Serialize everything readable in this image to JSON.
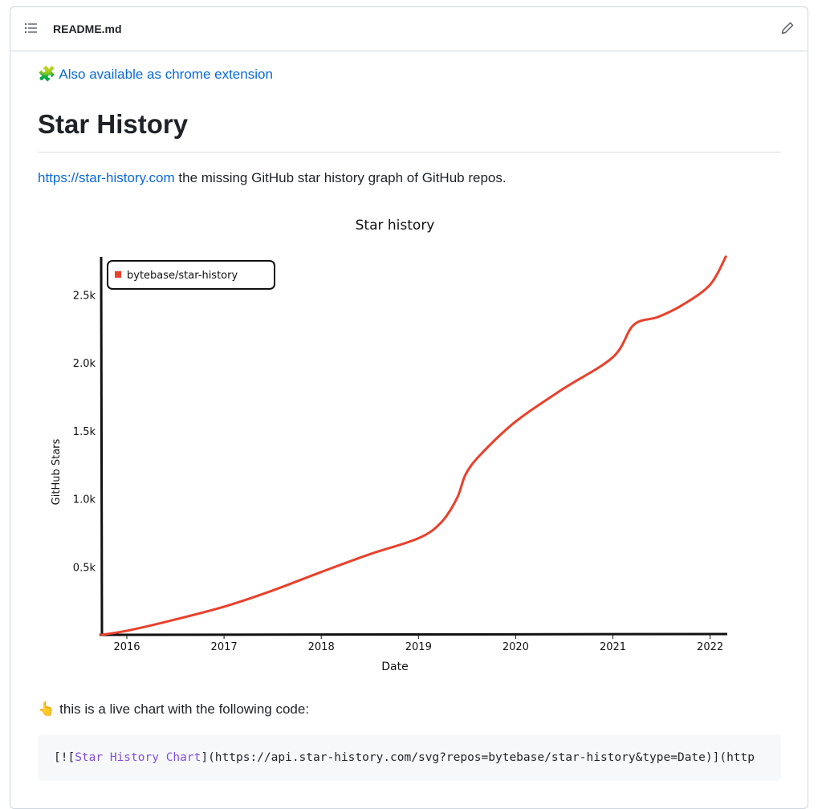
{
  "file_header": {
    "filename": "README.md",
    "toc_icon": "list-unordered-icon",
    "edit_icon": "pencil-icon"
  },
  "readme": {
    "extension_link": {
      "emoji": "🧩",
      "label": "Also available as chrome extension"
    },
    "title": "Star History",
    "description": {
      "link": "https://star-history.com",
      "text": " the missing GitHub star history graph of GitHub repos."
    },
    "live_note": {
      "emoji": "👆",
      "text": "this is a live chart with the following code:"
    },
    "code": {
      "open": "[![",
      "alt": "Star History Chart",
      "rest": "](https://api.star-history.com/svg?repos=bytebase/star-history&type=Date)](http"
    }
  },
  "colors": {
    "link": "#0969da",
    "series": "#e8412c",
    "code_alt": "#8250df"
  },
  "chart_data": {
    "type": "line",
    "title": "Star history",
    "xlabel": "Date",
    "ylabel": "GitHub Stars",
    "x_ticks": [
      "2016",
      "2017",
      "2018",
      "2019",
      "2020",
      "2021",
      "2022"
    ],
    "y_ticks": [
      "0.5k",
      "1.0k",
      "1.5k",
      "2.0k",
      "2.5k"
    ],
    "y_tick_values": [
      500,
      1000,
      1500,
      2000,
      2500
    ],
    "legend_position": "top-left",
    "grid": false,
    "series": [
      {
        "name": "bytebase/star-history",
        "color": "#e8412c",
        "x": [
          "2015-09-27",
          "2016-01-01",
          "2016-06-05",
          "2017-01-01",
          "2017-07-01",
          "2018-01-01",
          "2018-07-01",
          "2019-01-01",
          "2019-03-28",
          "2019-05-26",
          "2019-06-28",
          "2019-08-25",
          "2020-01-01",
          "2020-06-25",
          "2021-01-01",
          "2021-03-20",
          "2021-06-20",
          "2021-09-20",
          "2022-01-01",
          "2022-03-01"
        ],
        "y": [
          0,
          30,
          100,
          207,
          325,
          462,
          592,
          710,
          828,
          1006,
          1183,
          1331,
          1568,
          1805,
          2041,
          2278,
          2337,
          2426,
          2574,
          2780
        ]
      }
    ]
  }
}
